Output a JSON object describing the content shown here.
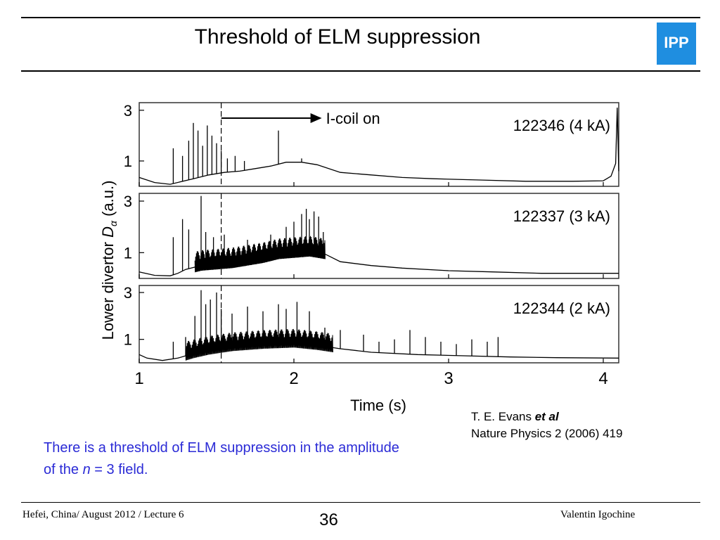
{
  "slide": {
    "title": "Threshold of ELM suppression",
    "logo_text": "IPP",
    "citation": {
      "line1_prefix": "T. E. Evans ",
      "line1_italic": "et al",
      "line2": "Nature Physics 2 (2006) 419"
    },
    "note": {
      "part1": "There is a threshold of ELM suppression in the amplitude of the ",
      "italic": "n",
      "part2": " = 3 field."
    },
    "footer": {
      "left": "Hefei, China/ August 2012 / Lecture 6",
      "page": "36",
      "right": "Valentin Igochine"
    },
    "colors": {
      "accent_text": "#2b2bd6",
      "logo_blue": "#1f8ee0",
      "trace": "#000000"
    }
  },
  "chart_data": {
    "type": "line",
    "ylabel_prefix": "Lower divertor ",
    "ylabel_symbol": "D",
    "ylabel_subscript": "α",
    "ylabel_suffix": " (a.u.)",
    "xlabel": "Time (s)",
    "xlim": [
      1,
      4.1
    ],
    "xticks": [
      1,
      2,
      3,
      4
    ],
    "xtick_labels": [
      "1",
      "2",
      "3",
      "4"
    ],
    "coil_marker": {
      "t": 1.53,
      "arrow_to": 2.18,
      "label": "I-coil on"
    },
    "panels": [
      {
        "label": "122346 (4 kA)",
        "ylim": [
          0,
          3.3
        ],
        "yticks": [
          1,
          3
        ],
        "ytick_labels": [
          "1",
          "3"
        ],
        "baseline": [
          [
            1.0,
            0.35
          ],
          [
            1.05,
            0.25
          ],
          [
            1.1,
            0.15
          ],
          [
            1.2,
            0.08
          ],
          [
            1.35,
            0.3
          ],
          [
            1.45,
            0.45
          ],
          [
            1.55,
            0.55
          ],
          [
            1.65,
            0.6
          ],
          [
            1.75,
            0.7
          ],
          [
            1.85,
            0.8
          ],
          [
            1.95,
            0.95
          ],
          [
            2.05,
            0.95
          ],
          [
            2.15,
            0.85
          ],
          [
            2.3,
            0.55
          ],
          [
            2.5,
            0.45
          ],
          [
            2.7,
            0.35
          ],
          [
            2.9,
            0.3
          ],
          [
            3.2,
            0.25
          ],
          [
            3.5,
            0.2
          ],
          [
            3.8,
            0.2
          ],
          [
            4.0,
            0.22
          ],
          [
            4.05,
            0.4
          ],
          [
            4.08,
            0.9
          ],
          [
            4.09,
            3.1
          ],
          [
            4.1,
            0.6
          ]
        ],
        "spikes": [
          [
            1.22,
            1.5
          ],
          [
            1.28,
            1.2
          ],
          [
            1.32,
            1.8
          ],
          [
            1.35,
            2.5
          ],
          [
            1.38,
            2.2
          ],
          [
            1.41,
            1.6
          ],
          [
            1.44,
            2.4
          ],
          [
            1.47,
            2.0
          ],
          [
            1.5,
            1.7
          ],
          [
            1.53,
            1.4
          ],
          [
            1.57,
            1.1
          ],
          [
            1.62,
            1.2
          ],
          [
            1.68,
            1.0
          ],
          [
            1.9,
            2.2
          ],
          [
            2.05,
            1.1
          ]
        ],
        "elm_band": []
      },
      {
        "label": "122337 (3 kA)",
        "ylim": [
          0,
          3.3
        ],
        "yticks": [
          1,
          3
        ],
        "ytick_labels": [
          "1",
          "3"
        ],
        "baseline": [
          [
            1.0,
            0.25
          ],
          [
            1.1,
            0.12
          ],
          [
            1.2,
            0.1
          ],
          [
            1.25,
            0.2
          ],
          [
            1.3,
            0.35
          ],
          [
            1.4,
            0.5
          ],
          [
            1.5,
            0.55
          ],
          [
            1.6,
            0.6
          ],
          [
            1.7,
            0.7
          ],
          [
            1.8,
            0.8
          ],
          [
            1.9,
            0.95
          ],
          [
            2.0,
            1.0
          ],
          [
            2.1,
            1.05
          ],
          [
            2.2,
            0.95
          ],
          [
            2.3,
            0.65
          ],
          [
            2.5,
            0.5
          ],
          [
            2.7,
            0.4
          ],
          [
            3.0,
            0.3
          ],
          [
            3.3,
            0.25
          ],
          [
            3.6,
            0.2
          ],
          [
            4.1,
            0.2
          ]
        ],
        "spikes": [
          [
            1.22,
            1.6
          ],
          [
            1.28,
            2.3
          ],
          [
            1.32,
            1.9
          ],
          [
            1.4,
            3.2
          ],
          [
            1.43,
            1.8
          ],
          [
            1.48,
            1.6
          ],
          [
            1.55,
            1.7
          ],
          [
            1.7,
            1.5
          ],
          [
            1.85,
            1.7
          ],
          [
            1.95,
            2.0
          ],
          [
            2.0,
            2.2
          ],
          [
            2.05,
            2.5
          ],
          [
            2.08,
            2.7
          ],
          [
            2.1,
            2.3
          ],
          [
            2.13,
            2.6
          ],
          [
            2.16,
            2.4
          ],
          [
            2.19,
            1.8
          ]
        ],
        "elm_band": [
          1.36,
          2.2
        ]
      },
      {
        "label": "122344 (2 kA)",
        "ylim": [
          0,
          3.3
        ],
        "yticks": [
          1,
          3
        ],
        "ytick_labels": [
          "1",
          "3"
        ],
        "baseline": [
          [
            1.0,
            0.35
          ],
          [
            1.05,
            0.2
          ],
          [
            1.15,
            0.1
          ],
          [
            1.25,
            0.2
          ],
          [
            1.35,
            0.4
          ],
          [
            1.45,
            0.55
          ],
          [
            1.6,
            0.7
          ],
          [
            1.8,
            0.8
          ],
          [
            2.0,
            0.85
          ],
          [
            2.15,
            0.75
          ],
          [
            2.3,
            0.6
          ],
          [
            2.5,
            0.45
          ],
          [
            2.8,
            0.35
          ],
          [
            3.1,
            0.3
          ],
          [
            3.4,
            0.25
          ],
          [
            3.7,
            0.22
          ],
          [
            4.1,
            0.2
          ]
        ],
        "spikes": [
          [
            1.22,
            0.9
          ],
          [
            1.3,
            1.1
          ],
          [
            1.36,
            2.0
          ],
          [
            1.4,
            3.1
          ],
          [
            1.43,
            2.5
          ],
          [
            1.46,
            2.7
          ],
          [
            1.5,
            3.0
          ],
          [
            1.53,
            2.3
          ],
          [
            1.6,
            2.1
          ],
          [
            1.7,
            2.4
          ],
          [
            1.8,
            2.2
          ],
          [
            1.9,
            2.5
          ],
          [
            1.95,
            2.3
          ],
          [
            2.02,
            2.6
          ],
          [
            2.1,
            2.2
          ],
          [
            2.2,
            1.5
          ],
          [
            2.3,
            1.4
          ],
          [
            2.45,
            1.2
          ],
          [
            2.55,
            0.9
          ],
          [
            2.65,
            1.0
          ],
          [
            2.75,
            1.4
          ],
          [
            2.85,
            1.1
          ],
          [
            2.95,
            0.9
          ],
          [
            3.05,
            0.8
          ],
          [
            3.15,
            1.0
          ],
          [
            3.25,
            0.9
          ],
          [
            3.32,
            1.1
          ]
        ],
        "elm_band": [
          1.3,
          2.25
        ]
      }
    ]
  }
}
